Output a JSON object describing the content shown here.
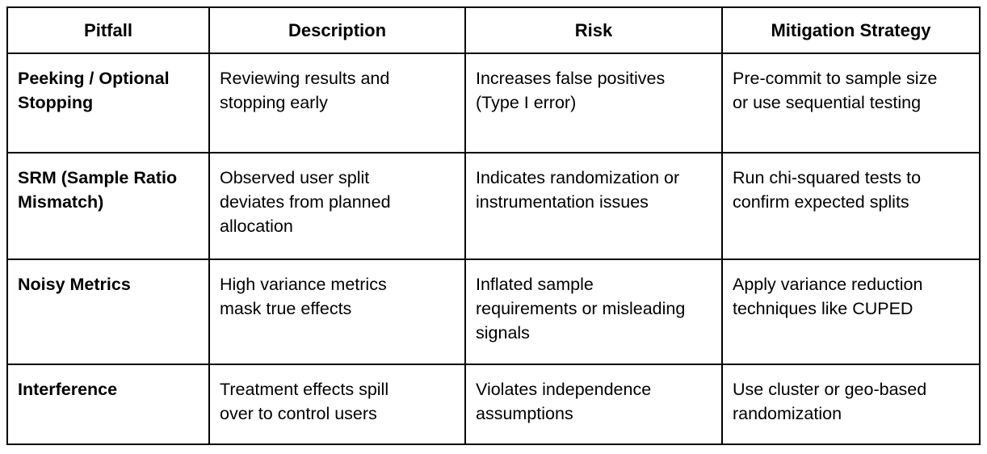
{
  "table": {
    "headers": [
      "Pitfall",
      "Description",
      "Risk",
      "Mitigation Strategy"
    ],
    "rows": [
      {
        "pitfall": "Peeking / Optional\nStopping",
        "description": "Reviewing results and\nstopping early",
        "risk": "Increases false positives\n(Type I error)",
        "mitigation": "Pre-commit to sample size\nor use sequential testing"
      },
      {
        "pitfall": "SRM (Sample Ratio\nMismatch)",
        "description": "Observed user split\ndeviates from planned\nallocation",
        "risk": "Indicates randomization or\ninstrumentation issues",
        "mitigation": "Run chi-squared tests to\nconfirm expected splits"
      },
      {
        "pitfall": "Noisy Metrics",
        "description": "High variance metrics\nmask true effects",
        "risk": "Inflated sample\nrequirements or misleading\nsignals",
        "mitigation": "Apply variance reduction\ntechniques like CUPED"
      },
      {
        "pitfall": "Interference",
        "description": "Treatment effects spill\nover to control users",
        "risk": "Violates independence\nassumptions",
        "mitigation": "Use cluster or geo-based\nrandomization"
      }
    ],
    "colors": {
      "border": "#000000",
      "text": "#000000",
      "background": "#ffffff"
    }
  }
}
